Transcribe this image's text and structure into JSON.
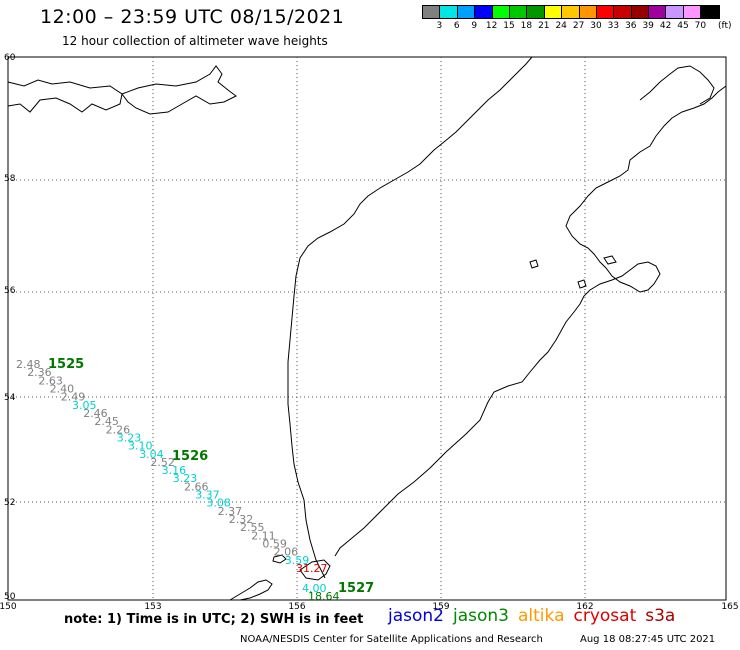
{
  "header": {
    "title": "12:00 – 23:59 UTC 08/15/2021",
    "subtitle": "12 hour collection of altimeter wave heights"
  },
  "legend": {
    "colors": [
      "#808080",
      "#00e5e5",
      "#00a0ff",
      "#0000ff",
      "#00ff00",
      "#00c800",
      "#009600",
      "#ffff00",
      "#ffc800",
      "#ff9600",
      "#ff0000",
      "#c80000",
      "#960000",
      "#a000a0",
      "#c896ff",
      "#ff96ff",
      "#000000"
    ],
    "labels": [
      "3",
      "6",
      "9",
      "12",
      "15",
      "18",
      "21",
      "24",
      "27",
      "30",
      "33",
      "36",
      "39",
      "42",
      "45",
      "70"
    ],
    "unit": "(ft)"
  },
  "map": {
    "lat_labels": [
      "60",
      "58",
      "56",
      "54",
      "52",
      "50"
    ],
    "lon_labels": [
      "150",
      "153",
      "156",
      "159",
      "162",
      "165"
    ],
    "track": {
      "pass_labels": [
        {
          "text": "1525",
          "color": "#007800"
        },
        {
          "text": "1526",
          "color": "#007800"
        },
        {
          "text": "1527",
          "color": "#007800"
        }
      ],
      "values": [
        {
          "text": "2.48",
          "color": "#808080"
        },
        {
          "text": "2.36",
          "color": "#808080"
        },
        {
          "text": "2.63",
          "color": "#808080"
        },
        {
          "text": "2.40",
          "color": "#808080"
        },
        {
          "text": "2.49",
          "color": "#808080"
        },
        {
          "text": "3.05",
          "color": "#00d0d0"
        },
        {
          "text": "2.46",
          "color": "#808080"
        },
        {
          "text": "2.45",
          "color": "#808080"
        },
        {
          "text": "2.26",
          "color": "#808080"
        },
        {
          "text": "3.23",
          "color": "#00d0d0"
        },
        {
          "text": "3.10",
          "color": "#00d0d0"
        },
        {
          "text": "3.04",
          "color": "#00d0d0"
        },
        {
          "text": "2.52",
          "color": "#808080"
        },
        {
          "text": "3.16",
          "color": "#00d0d0"
        },
        {
          "text": "3.23",
          "color": "#00d0d0"
        },
        {
          "text": "2.66",
          "color": "#808080"
        },
        {
          "text": "3.37",
          "color": "#00d0d0"
        },
        {
          "text": "3.08",
          "color": "#00d0d0"
        },
        {
          "text": "2.37",
          "color": "#808080"
        },
        {
          "text": "2.32",
          "color": "#808080"
        },
        {
          "text": "2.55",
          "color": "#808080"
        },
        {
          "text": "2.11",
          "color": "#808080"
        },
        {
          "text": "0.59",
          "color": "#808080"
        },
        {
          "text": "2.06",
          "color": "#808080"
        },
        {
          "text": "3.59",
          "color": "#00d0d0"
        },
        {
          "text": "31.27",
          "color": "#e00000"
        },
        {
          "text": "4.00",
          "color": "#00d0d0"
        },
        {
          "text": "18.64",
          "color": "#007800"
        }
      ]
    }
  },
  "footer": {
    "note": "note: 1) Time is in UTC; 2) SWH is in feet",
    "satellites": [
      {
        "name": "jason2",
        "color": "#0000dd"
      },
      {
        "name": "jason3",
        "color": "#008800"
      },
      {
        "name": "altika",
        "color": "#ff9900"
      },
      {
        "name": "cryosat",
        "color": "#dd0000"
      },
      {
        "name": "s3a",
        "color": "#aa0000"
      }
    ],
    "credit": "NOAA/NESDIS Center for Satellite Applications and Research",
    "timestamp": "Aug 18 08:27:45 UTC 2021"
  }
}
